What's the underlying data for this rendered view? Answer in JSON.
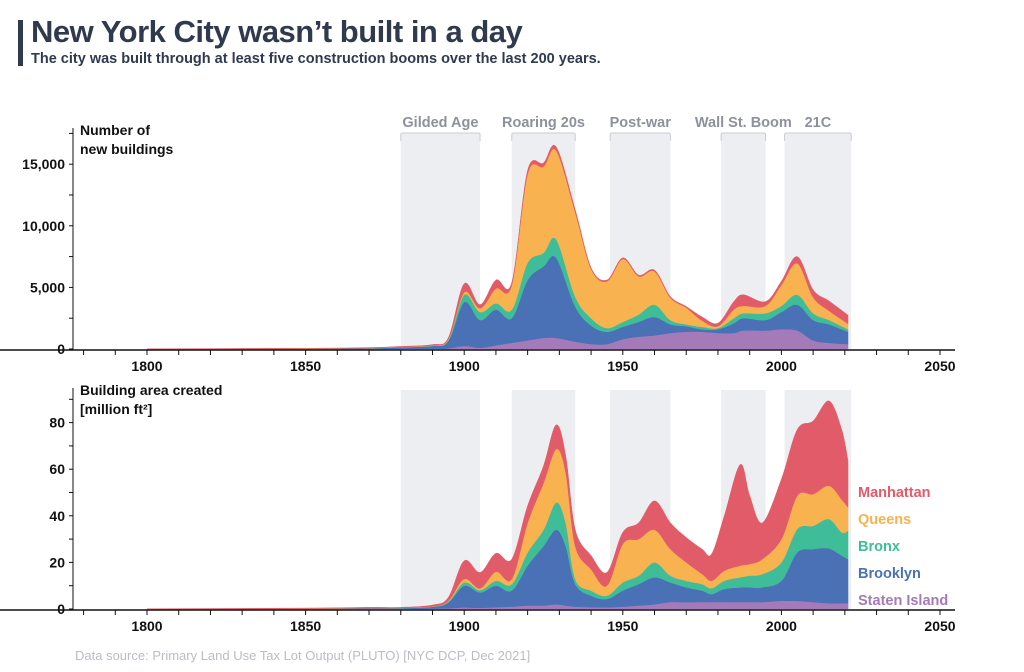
{
  "header": {
    "title": "New York City wasn’t built in a day",
    "subtitle": "The city was built through at least five construction booms over the last 200 years."
  },
  "footer": {
    "source": "Data source: Primary Land Use Tax Lot Output (PLUTO) [NYC DCP, Dec 2021]"
  },
  "bands": [
    {
      "label": "Gilded Age",
      "start": 1880,
      "end": 1905
    },
    {
      "label": "Roaring 20s",
      "start": 1915,
      "end": 1935
    },
    {
      "label": "Post-war",
      "start": 1946,
      "end": 1965
    },
    {
      "label": "Wall St. Boom",
      "start": 1981,
      "end": 1995
    },
    {
      "label": "21C",
      "start": 2001,
      "end": 2022
    }
  ],
  "colors": {
    "Manhattan": "#e15c68",
    "Queens": "#f8b350",
    "Bronx": "#3fbd98",
    "Brooklyn": "#4a70b6",
    "Staten Island": "#a57ab8",
    "band": "#eceef1",
    "band_label": "#8d919c"
  },
  "chart_data": [
    {
      "type": "area",
      "stacked": true,
      "ylabel_lines": [
        "Number of",
        "new buildings"
      ],
      "xlim": [
        1777,
        2053
      ],
      "ylim": [
        0,
        18000
      ],
      "xticks": [
        1800,
        1850,
        1900,
        1950,
        2000,
        2050
      ],
      "xtick_labels": [
        "1800",
        "1850",
        "1900",
        "1950",
        "2000",
        "2050"
      ],
      "yticks": [
        0,
        5000,
        10000,
        15000
      ],
      "ytick_labels": [
        "0",
        "5,000",
        "10,000",
        "15,000"
      ],
      "grid": false,
      "x": [
        1800,
        1850,
        1870,
        1880,
        1890,
        1895,
        1900,
        1905,
        1910,
        1915,
        1920,
        1925,
        1929,
        1935,
        1940,
        1945,
        1950,
        1955,
        1960,
        1965,
        1970,
        1975,
        1980,
        1985,
        1988,
        1995,
        2000,
        2005,
        2010,
        2015,
        2021
      ],
      "series": [
        {
          "name": "Staten Island",
          "values": [
            0,
            5,
            10,
            20,
            30,
            50,
            250,
            100,
            300,
            500,
            700,
            900,
            900,
            600,
            400,
            400,
            800,
            1000,
            1100,
            1300,
            1400,
            1400,
            1300,
            1300,
            1500,
            1500,
            1600,
            1500,
            700,
            500,
            400
          ]
        },
        {
          "name": "Brooklyn",
          "values": [
            5,
            30,
            60,
            120,
            220,
            600,
            3550,
            2250,
            2900,
            2000,
            4900,
            5800,
            6500,
            2850,
            1500,
            1000,
            1000,
            1200,
            1500,
            700,
            450,
            200,
            300,
            800,
            1000,
            850,
            1400,
            2100,
            1650,
            1500,
            1000
          ]
        },
        {
          "name": "Bronx",
          "values": [
            0,
            2,
            5,
            10,
            20,
            80,
            600,
            650,
            500,
            700,
            1400,
            1100,
            1500,
            800,
            600,
            300,
            400,
            600,
            1000,
            350,
            150,
            200,
            100,
            400,
            400,
            550,
            500,
            800,
            550,
            350,
            200
          ]
        },
        {
          "name": "Queens",
          "values": [
            0,
            5,
            10,
            20,
            30,
            60,
            200,
            300,
            1200,
            2000,
            7200,
            7000,
            7200,
            6850,
            4000,
            3800,
            5100,
            3100,
            2700,
            1800,
            1350,
            500,
            150,
            700,
            600,
            600,
            1700,
            2550,
            1300,
            750,
            450
          ]
        },
        {
          "name": "Manhattan",
          "values": [
            10,
            20,
            30,
            40,
            60,
            120,
            700,
            300,
            700,
            200,
            300,
            300,
            300,
            200,
            100,
            100,
            100,
            100,
            100,
            100,
            100,
            300,
            250,
            650,
            900,
            350,
            300,
            550,
            600,
            800,
            700
          ]
        }
      ]
    },
    {
      "type": "area",
      "stacked": true,
      "ylabel_lines": [
        "Building area created",
        "[million ft²]"
      ],
      "xlim": [
        1777,
        2053
      ],
      "ylim": [
        0,
        92
      ],
      "xticks": [
        1800,
        1850,
        1900,
        1950,
        2000,
        2050
      ],
      "xtick_labels": [
        "1800",
        "1850",
        "1900",
        "1950",
        "2000",
        "2050"
      ],
      "yticks": [
        0,
        20,
        40,
        60,
        80
      ],
      "ytick_labels": [
        "0",
        "20",
        "40",
        "60",
        "80"
      ],
      "grid": false,
      "legend": "right, inline labels",
      "x": [
        1800,
        1850,
        1870,
        1880,
        1890,
        1895,
        1900,
        1905,
        1910,
        1915,
        1920,
        1925,
        1929,
        1932,
        1935,
        1940,
        1945,
        1950,
        1955,
        1960,
        1965,
        1970,
        1975,
        1978,
        1982,
        1987,
        1990,
        1994,
        2000,
        2005,
        2010,
        2015,
        2019,
        2021
      ],
      "series": [
        {
          "name": "Staten Island",
          "label": "Staten Island",
          "values": [
            0,
            0.05,
            0.1,
            0.1,
            0.2,
            0.3,
            0.7,
            0.5,
            0.8,
            1,
            1.5,
            1.5,
            2,
            1.5,
            1,
            0.8,
            0.7,
            1,
            1.5,
            2,
            3,
            2.9,
            3,
            3,
            3,
            3,
            3,
            3,
            3.5,
            3.5,
            3,
            2.5,
            2.5,
            2.5
          ]
        },
        {
          "name": "Brooklyn",
          "label": "Brooklyn",
          "values": [
            0,
            0.1,
            0.2,
            0.3,
            0.7,
            2.5,
            9.3,
            6.6,
            9.2,
            6.9,
            17.1,
            25.5,
            32,
            25.5,
            9.7,
            4.9,
            3.6,
            6.9,
            9.2,
            11.6,
            8.4,
            6.4,
            4.9,
            3.4,
            5.6,
            6.3,
            6.3,
            6.3,
            8.6,
            20.8,
            22.7,
            23.5,
            20.4,
            18.9
          ]
        },
        {
          "name": "Bronx",
          "label": "Bronx",
          "values": [
            0,
            0.02,
            0.05,
            0.05,
            0.1,
            0.4,
            1.4,
            1.0,
            2.1,
            2.8,
            5.7,
            7,
            11.7,
            10,
            2.2,
            2.2,
            1.4,
            3.5,
            3.6,
            6.4,
            2.9,
            2.8,
            2.8,
            2.5,
            3.5,
            4.3,
            5,
            5.7,
            7.9,
            10,
            10,
            12.6,
            10,
            12.2
          ]
        },
        {
          "name": "Queens",
          "label": "Queens",
          "values": [
            0,
            0.03,
            0.05,
            0.05,
            0.1,
            0.3,
            1.5,
            0.8,
            3.9,
            2.2,
            12.7,
            20,
            22.9,
            21.6,
            14.1,
            9.1,
            4.3,
            16.5,
            15.7,
            14,
            11.4,
            7.9,
            4.3,
            3.2,
            4.3,
            5,
            5,
            6.4,
            10,
            14.3,
            13.6,
            14.3,
            14.1,
            10
          ]
        },
        {
          "name": "Manhattan",
          "label": "Manhattan",
          "values": [
            0.1,
            0.2,
            0.3,
            0.2,
            0.6,
            1.5,
            7.8,
            6.8,
            7.9,
            8.5,
            7.3,
            7.4,
            10.4,
            7.1,
            7,
            5.9,
            5.7,
            5,
            7,
            12.4,
            11.3,
            10.7,
            10.7,
            11.5,
            23.6,
            43.4,
            29.3,
            15.6,
            25.7,
            28.4,
            31.4,
            36.4,
            30,
            20
          ]
        }
      ]
    }
  ]
}
